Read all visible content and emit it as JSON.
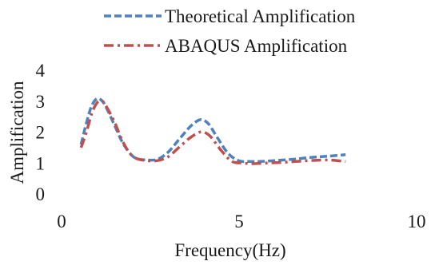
{
  "chart_data": {
    "type": "line",
    "title": "",
    "xlabel": "Frequency(Hz)",
    "ylabel": "Amplification",
    "xlim": [
      0,
      10
    ],
    "ylim": [
      0,
      4
    ],
    "x_ticks": [
      {
        "value": 0,
        "label": "0"
      },
      {
        "value": 5,
        "label": "5"
      },
      {
        "value": 10,
        "label": "10"
      }
    ],
    "y_ticks": [
      {
        "value": 0,
        "label": "0"
      },
      {
        "value": 1,
        "label": "1"
      },
      {
        "value": 2,
        "label": "2"
      },
      {
        "value": 3,
        "label": "3"
      },
      {
        "value": 4,
        "label": "4"
      }
    ],
    "grid": false,
    "legend": "top",
    "series": [
      {
        "name": "Theoretical Amplification",
        "color": "#4f81bd",
        "style": "dashed",
        "x": [
          0.55,
          0.7,
          0.85,
          1.0,
          1.15,
          1.3,
          1.5,
          1.7,
          1.9,
          2.1,
          2.4,
          2.7,
          3.0,
          3.3,
          3.6,
          3.85,
          4.0,
          4.15,
          4.4,
          4.7,
          5.0,
          5.3,
          5.6,
          6.0,
          6.5,
          7.0,
          7.5,
          8.0
        ],
        "y": [
          1.6,
          2.3,
          2.85,
          3.08,
          3.0,
          2.7,
          2.2,
          1.7,
          1.35,
          1.15,
          1.1,
          1.12,
          1.35,
          1.75,
          2.15,
          2.38,
          2.38,
          2.25,
          1.8,
          1.3,
          1.07,
          1.05,
          1.05,
          1.08,
          1.12,
          1.18,
          1.22,
          1.27
        ]
      },
      {
        "name": "ABAQUS Amplification",
        "color": "#c0504d",
        "style": "dash-dot",
        "x": [
          0.55,
          0.7,
          0.85,
          1.0,
          1.15,
          1.3,
          1.5,
          1.7,
          1.9,
          2.1,
          2.4,
          2.7,
          3.0,
          3.3,
          3.6,
          3.85,
          4.0,
          4.2,
          4.5,
          4.8,
          5.1,
          5.4,
          5.8,
          6.2,
          6.6,
          7.0,
          7.5,
          8.0
        ],
        "y": [
          1.5,
          2.0,
          2.6,
          2.95,
          3.0,
          2.75,
          2.3,
          1.75,
          1.35,
          1.15,
          1.08,
          1.08,
          1.2,
          1.5,
          1.8,
          1.98,
          2.0,
          1.85,
          1.4,
          1.05,
          1.0,
          0.98,
          1.0,
          1.02,
          1.05,
          1.08,
          1.1,
          1.05
        ]
      }
    ]
  }
}
